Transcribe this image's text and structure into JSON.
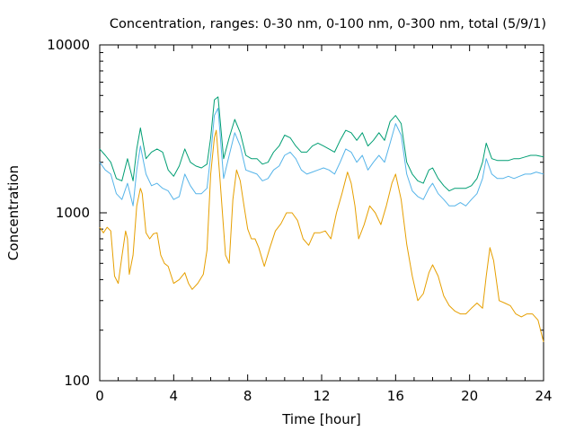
{
  "chart_data": {
    "type": "line",
    "title": "Concentration, ranges: 0-30 nm, 0-100 nm, 0-300 nm, total (5/9/1)",
    "xlabel": "Time [hour]",
    "ylabel": "Concentration",
    "xlim": [
      0,
      24
    ],
    "ylim": [
      100,
      10000
    ],
    "y_scale": "log",
    "grid": false,
    "legend": "none",
    "x_ticks": [
      0,
      4,
      8,
      12,
      16,
      20,
      24
    ],
    "x_tick_labels": [
      "0",
      "4",
      "8",
      "12",
      "16",
      "20",
      "24"
    ],
    "y_ticks": [
      100,
      1000,
      10000
    ],
    "y_tick_labels": [
      "100",
      "1000",
      "10000"
    ],
    "series": [
      {
        "color": "#e69f00",
        "x": [
          0,
          0.2,
          0.4,
          0.6,
          0.8,
          1.0,
          1.2,
          1.4,
          1.5,
          1.6,
          1.8,
          2.0,
          2.2,
          2.3,
          2.5,
          2.7,
          2.9,
          3.1,
          3.3,
          3.5,
          3.7,
          4.0,
          4.3,
          4.6,
          4.8,
          5.0,
          5.3,
          5.6,
          5.8,
          6.0,
          6.2,
          6.3,
          6.5,
          6.8,
          7.0,
          7.2,
          7.4,
          7.6,
          7.8,
          8.0,
          8.2,
          8.4,
          8.6,
          8.9,
          9.2,
          9.5,
          9.8,
          10.1,
          10.4,
          10.7,
          11.0,
          11.3,
          11.6,
          11.9,
          12.2,
          12.5,
          12.8,
          13.1,
          13.4,
          13.6,
          13.8,
          14.0,
          14.3,
          14.6,
          14.9,
          15.2,
          15.5,
          15.8,
          16.0,
          16.3,
          16.6,
          16.9,
          17.2,
          17.5,
          17.8,
          18.0,
          18.3,
          18.6,
          18.9,
          19.2,
          19.5,
          19.8,
          20.1,
          20.4,
          20.7,
          20.9,
          21.1,
          21.3,
          21.6,
          21.9,
          22.2,
          22.5,
          22.8,
          23.1,
          23.4,
          23.7,
          24.0
        ],
        "values": [
          820,
          760,
          820,
          780,
          420,
          380,
          550,
          780,
          700,
          430,
          560,
          1100,
          1400,
          1300,
          760,
          700,
          750,
          760,
          560,
          500,
          480,
          380,
          400,
          440,
          380,
          350,
          380,
          430,
          600,
          1700,
          2800,
          3100,
          1600,
          560,
          500,
          1200,
          1800,
          1550,
          1100,
          800,
          700,
          700,
          620,
          480,
          620,
          780,
          860,
          1000,
          1000,
          900,
          700,
          640,
          760,
          760,
          780,
          700,
          1000,
          1300,
          1750,
          1500,
          1100,
          700,
          850,
          1100,
          1000,
          850,
          1100,
          1500,
          1700,
          1200,
          650,
          420,
          300,
          330,
          440,
          490,
          420,
          320,
          280,
          260,
          250,
          250,
          270,
          290,
          270,
          420,
          620,
          520,
          300,
          290,
          280,
          250,
          240,
          250,
          250,
          230,
          170
        ]
      },
      {
        "color": "#56b4e9",
        "x": [
          0,
          0.3,
          0.6,
          0.9,
          1.2,
          1.5,
          1.8,
          2.0,
          2.2,
          2.5,
          2.8,
          3.1,
          3.4,
          3.7,
          4.0,
          4.3,
          4.6,
          4.9,
          5.2,
          5.5,
          5.8,
          6.0,
          6.2,
          6.4,
          6.7,
          7.0,
          7.3,
          7.6,
          7.9,
          8.2,
          8.5,
          8.8,
          9.1,
          9.4,
          9.7,
          10.0,
          10.3,
          10.6,
          10.9,
          11.2,
          11.5,
          11.8,
          12.1,
          12.4,
          12.7,
          13.0,
          13.3,
          13.6,
          13.9,
          14.2,
          14.5,
          14.8,
          15.1,
          15.4,
          15.7,
          16.0,
          16.3,
          16.6,
          16.9,
          17.2,
          17.5,
          17.8,
          18.0,
          18.3,
          18.6,
          18.9,
          19.2,
          19.5,
          19.8,
          20.1,
          20.4,
          20.7,
          20.9,
          21.2,
          21.5,
          21.8,
          22.1,
          22.4,
          22.7,
          23.0,
          23.3,
          23.6,
          24.0
        ],
        "values": [
          2000,
          1800,
          1700,
          1300,
          1200,
          1500,
          1100,
          1800,
          2500,
          1700,
          1450,
          1500,
          1400,
          1350,
          1200,
          1250,
          1700,
          1450,
          1300,
          1300,
          1400,
          2200,
          3800,
          4200,
          1600,
          2200,
          3000,
          2500,
          1800,
          1750,
          1700,
          1550,
          1600,
          1800,
          1900,
          2200,
          2300,
          2100,
          1800,
          1700,
          1750,
          1800,
          1850,
          1800,
          1700,
          2000,
          2400,
          2300,
          2000,
          2200,
          1800,
          2000,
          2200,
          2000,
          2600,
          3400,
          2900,
          1700,
          1350,
          1250,
          1200,
          1400,
          1500,
          1300,
          1200,
          1100,
          1100,
          1150,
          1100,
          1200,
          1300,
          1600,
          2100,
          1700,
          1600,
          1600,
          1650,
          1600,
          1650,
          1700,
          1700,
          1750,
          1700
        ]
      },
      {
        "color": "#009e73",
        "x": [
          0,
          0.3,
          0.6,
          0.9,
          1.2,
          1.5,
          1.8,
          2.0,
          2.2,
          2.5,
          2.8,
          3.1,
          3.4,
          3.7,
          4.0,
          4.3,
          4.6,
          4.9,
          5.2,
          5.5,
          5.8,
          6.0,
          6.2,
          6.4,
          6.7,
          7.0,
          7.3,
          7.6,
          7.9,
          8.2,
          8.5,
          8.8,
          9.1,
          9.4,
          9.7,
          10.0,
          10.3,
          10.6,
          10.9,
          11.2,
          11.5,
          11.8,
          12.1,
          12.4,
          12.7,
          13.0,
          13.3,
          13.6,
          13.9,
          14.2,
          14.5,
          14.8,
          15.1,
          15.4,
          15.7,
          16.0,
          16.3,
          16.6,
          16.9,
          17.2,
          17.5,
          17.8,
          18.0,
          18.3,
          18.6,
          18.9,
          19.2,
          19.5,
          19.8,
          20.1,
          20.4,
          20.7,
          20.9,
          21.2,
          21.5,
          21.8,
          22.1,
          22.4,
          22.7,
          23.0,
          23.3,
          23.6,
          24.0
        ],
        "values": [
          2400,
          2200,
          2000,
          1600,
          1550,
          2100,
          1550,
          2400,
          3200,
          2100,
          2300,
          2400,
          2300,
          1800,
          1650,
          1900,
          2400,
          2000,
          1900,
          1850,
          1950,
          2800,
          4700,
          4900,
          2100,
          2800,
          3600,
          3000,
          2200,
          2100,
          2100,
          1950,
          2000,
          2300,
          2500,
          2900,
          2800,
          2500,
          2300,
          2300,
          2500,
          2600,
          2500,
          2400,
          2300,
          2700,
          3100,
          3000,
          2700,
          3000,
          2500,
          2700,
          3000,
          2700,
          3500,
          3800,
          3400,
          2000,
          1700,
          1550,
          1500,
          1800,
          1850,
          1600,
          1450,
          1350,
          1400,
          1400,
          1400,
          1450,
          1600,
          2000,
          2600,
          2100,
          2050,
          2050,
          2050,
          2100,
          2100,
          2150,
          2200,
          2200,
          2150
        ]
      }
    ]
  }
}
